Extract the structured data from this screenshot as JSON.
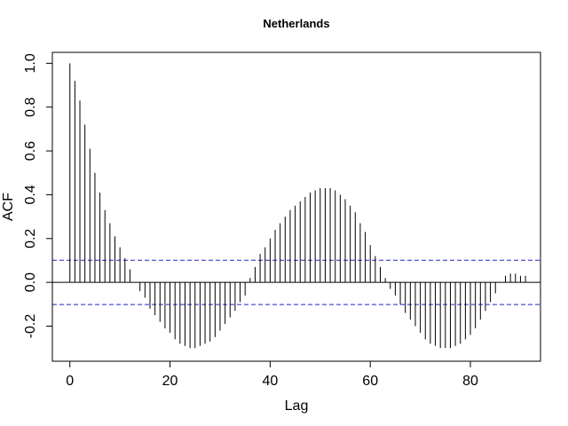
{
  "chart_data": {
    "type": "bar",
    "title": "Netherlands",
    "xlabel": "Lag",
    "ylabel": "ACF",
    "xlim": [
      -3.5,
      94
    ],
    "ylim": [
      -0.36,
      1.05
    ],
    "x_ticks": [
      0,
      20,
      40,
      60,
      80
    ],
    "x_tick_labels": [
      "0",
      "20",
      "40",
      "60",
      "80"
    ],
    "y_ticks": [
      -0.2,
      0.0,
      0.2,
      0.4,
      0.6,
      0.8,
      1.0
    ],
    "y_tick_labels": [
      "-0.2",
      "0.0",
      "0.2",
      "0.4",
      "0.6",
      "0.8",
      "1.0"
    ],
    "confidence_band": [
      0.101,
      -0.101
    ],
    "grid": false,
    "series": [
      {
        "x": [
          0,
          1,
          2,
          3,
          4,
          5,
          6,
          7,
          8,
          9,
          10,
          11,
          12,
          13,
          14,
          15,
          16,
          17,
          18,
          19,
          20,
          21,
          22,
          23,
          24,
          25,
          26,
          27,
          28,
          29,
          30,
          31,
          32,
          33,
          34,
          35,
          36,
          37,
          38,
          39,
          40,
          41,
          42,
          43,
          44,
          45,
          46,
          47,
          48,
          49,
          50,
          51,
          52,
          53,
          54,
          55,
          56,
          57,
          58,
          59,
          60,
          61,
          62,
          63,
          64,
          65,
          66,
          67,
          68,
          69,
          70,
          71,
          72,
          73,
          74,
          75,
          76,
          77,
          78,
          79,
          80,
          81,
          82,
          83,
          84,
          85,
          86,
          87,
          88,
          89,
          90,
          91
        ],
        "values": [
          1.0,
          0.92,
          0.83,
          0.72,
          0.61,
          0.5,
          0.41,
          0.33,
          0.27,
          0.21,
          0.16,
          0.11,
          0.06,
          0.0,
          -0.04,
          -0.07,
          -0.12,
          -0.15,
          -0.18,
          -0.21,
          -0.23,
          -0.26,
          -0.28,
          -0.29,
          -0.3,
          -0.3,
          -0.29,
          -0.28,
          -0.27,
          -0.25,
          -0.22,
          -0.19,
          -0.16,
          -0.13,
          -0.09,
          -0.06,
          0.02,
          0.07,
          0.13,
          0.16,
          0.2,
          0.24,
          0.27,
          0.3,
          0.33,
          0.35,
          0.37,
          0.39,
          0.41,
          0.42,
          0.43,
          0.43,
          0.43,
          0.42,
          0.4,
          0.38,
          0.35,
          0.32,
          0.27,
          0.23,
          0.17,
          0.12,
          0.07,
          0.02,
          -0.03,
          -0.06,
          -0.1,
          -0.14,
          -0.17,
          -0.2,
          -0.23,
          -0.26,
          -0.28,
          -0.29,
          -0.3,
          -0.3,
          -0.3,
          -0.29,
          -0.28,
          -0.26,
          -0.24,
          -0.21,
          -0.17,
          -0.13,
          -0.09,
          -0.05,
          0.0,
          0.03,
          0.04,
          0.04,
          0.03,
          0.03
        ]
      }
    ]
  }
}
